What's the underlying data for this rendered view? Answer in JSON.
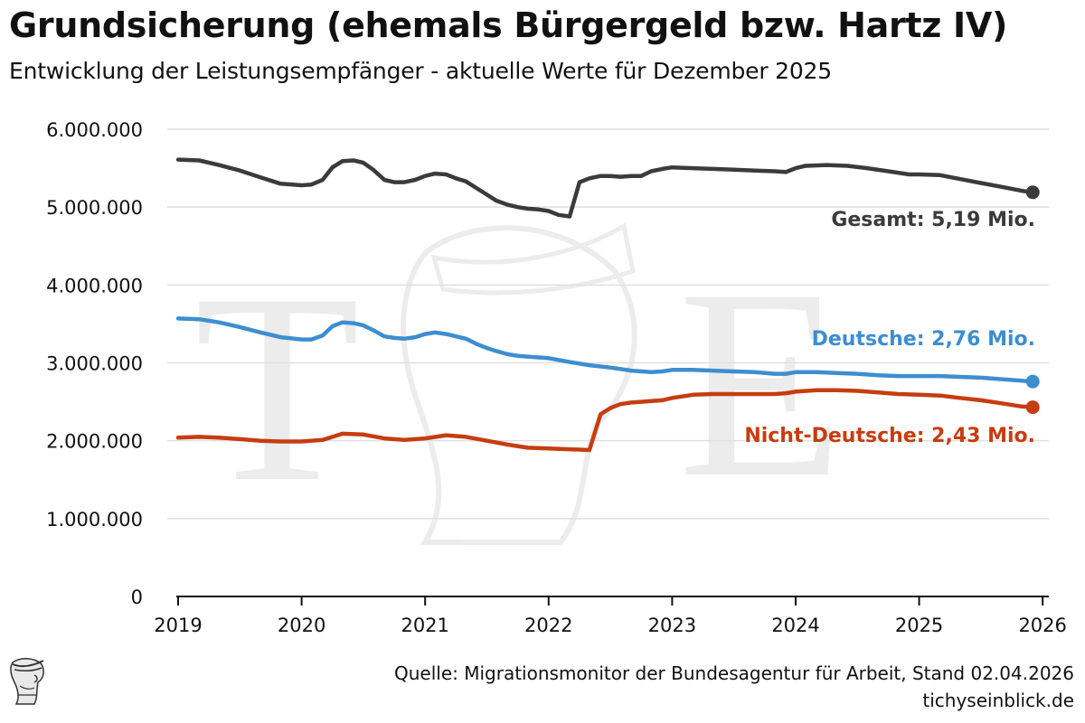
{
  "header": {
    "title": "Grundsicherung (ehemals Bürgergeld bzw. Hartz IV)",
    "subtitle": "Entwicklung der Leistungsempfänger - aktuelle Werte für Dezember 2025"
  },
  "footer": {
    "source": "Quelle: Migrationsmonitor der Bundesagentur für Arbeit, Stand 02.04.2026",
    "site": "tichyseinblick.de"
  },
  "chart_data": {
    "type": "line",
    "title": "Grundsicherung (ehemals Bürgergeld bzw. Hartz IV)",
    "subtitle": "Entwicklung der Leistungsempfänger - aktuelle Werte für Dezember 2025",
    "xlabel": "",
    "ylabel": "",
    "xlim": [
      2019,
      2026.05
    ],
    "ylim": [
      0,
      6000000
    ],
    "grid": true,
    "legend": "direct labels at line ends",
    "x_ticks": [
      {
        "value": 2019,
        "label": "2019"
      },
      {
        "value": 2020,
        "label": "2020"
      },
      {
        "value": 2021,
        "label": "2021"
      },
      {
        "value": 2022,
        "label": "2022"
      },
      {
        "value": 2023,
        "label": "2023"
      },
      {
        "value": 2024,
        "label": "2024"
      },
      {
        "value": 2025,
        "label": "2025"
      },
      {
        "value": 2026,
        "label": "2026"
      }
    ],
    "y_ticks": [
      {
        "value": 0,
        "label": "0"
      },
      {
        "value": 1000000,
        "label": "1.000.000"
      },
      {
        "value": 2000000,
        "label": "2.000.000"
      },
      {
        "value": 3000000,
        "label": "3.000.000"
      },
      {
        "value": 4000000,
        "label": "4.000.000"
      },
      {
        "value": 5000000,
        "label": "5.000.000"
      },
      {
        "value": 6000000,
        "label": "6.000.000"
      }
    ],
    "series": [
      {
        "name": "Gesamt",
        "label": "Gesamt: 5,19 Mio.",
        "color": "#3b3b3b",
        "x": [
          2019.0,
          2019.17,
          2019.33,
          2019.5,
          2019.67,
          2019.83,
          2020.0,
          2020.08,
          2020.17,
          2020.25,
          2020.33,
          2020.42,
          2020.5,
          2020.58,
          2020.67,
          2020.75,
          2020.83,
          2020.92,
          2021.0,
          2021.08,
          2021.17,
          2021.25,
          2021.33,
          2021.42,
          2021.5,
          2021.58,
          2021.67,
          2021.75,
          2021.83,
          2021.92,
          2022.0,
          2022.08,
          2022.17,
          2022.25,
          2022.33,
          2022.42,
          2022.5,
          2022.58,
          2022.67,
          2022.75,
          2022.83,
          2022.92,
          2023.0,
          2023.17,
          2023.33,
          2023.5,
          2023.67,
          2023.83,
          2023.92,
          2024.0,
          2024.08,
          2024.25,
          2024.42,
          2024.58,
          2024.75,
          2024.92,
          2025.0,
          2025.17,
          2025.33,
          2025.5,
          2025.67,
          2025.83,
          2025.92
        ],
        "y": [
          5610000,
          5600000,
          5540000,
          5470000,
          5380000,
          5300000,
          5280000,
          5290000,
          5350000,
          5510000,
          5590000,
          5600000,
          5570000,
          5480000,
          5350000,
          5320000,
          5320000,
          5350000,
          5400000,
          5430000,
          5420000,
          5370000,
          5330000,
          5240000,
          5160000,
          5080000,
          5030000,
          5000000,
          4980000,
          4970000,
          4950000,
          4900000,
          4880000,
          5320000,
          5370000,
          5400000,
          5400000,
          5390000,
          5400000,
          5400000,
          5460000,
          5490000,
          5510000,
          5500000,
          5490000,
          5480000,
          5470000,
          5460000,
          5450000,
          5500000,
          5530000,
          5540000,
          5530000,
          5500000,
          5460000,
          5420000,
          5420000,
          5410000,
          5360000,
          5310000,
          5260000,
          5210000,
          5190000
        ]
      },
      {
        "name": "Deutsche",
        "label": "Deutsche: 2,76 Mio.",
        "color": "#3d8ecf",
        "x": [
          2019.0,
          2019.17,
          2019.33,
          2019.5,
          2019.67,
          2019.83,
          2020.0,
          2020.08,
          2020.17,
          2020.25,
          2020.33,
          2020.42,
          2020.5,
          2020.58,
          2020.67,
          2020.75,
          2020.83,
          2020.92,
          2021.0,
          2021.08,
          2021.17,
          2021.25,
          2021.33,
          2021.42,
          2021.5,
          2021.58,
          2021.67,
          2021.75,
          2021.83,
          2021.92,
          2022.0,
          2022.17,
          2022.33,
          2022.5,
          2022.67,
          2022.83,
          2022.92,
          2023.0,
          2023.17,
          2023.33,
          2023.5,
          2023.67,
          2023.83,
          2023.92,
          2024.0,
          2024.17,
          2024.33,
          2024.5,
          2024.67,
          2024.83,
          2025.0,
          2025.17,
          2025.33,
          2025.5,
          2025.67,
          2025.83,
          2025.92
        ],
        "y": [
          3570000,
          3560000,
          3520000,
          3460000,
          3390000,
          3330000,
          3300000,
          3300000,
          3350000,
          3470000,
          3520000,
          3510000,
          3480000,
          3420000,
          3340000,
          3320000,
          3310000,
          3330000,
          3370000,
          3390000,
          3370000,
          3340000,
          3310000,
          3240000,
          3190000,
          3150000,
          3110000,
          3090000,
          3080000,
          3070000,
          3060000,
          3010000,
          2970000,
          2940000,
          2900000,
          2880000,
          2890000,
          2910000,
          2910000,
          2900000,
          2890000,
          2880000,
          2860000,
          2860000,
          2880000,
          2880000,
          2870000,
          2860000,
          2840000,
          2830000,
          2830000,
          2830000,
          2820000,
          2810000,
          2790000,
          2770000,
          2760000
        ]
      },
      {
        "name": "Nicht-Deutsche",
        "label": "Nicht-Deutsche: 2,43 Mio.",
        "color": "#c63d10",
        "x": [
          2019.0,
          2019.17,
          2019.33,
          2019.5,
          2019.67,
          2019.83,
          2020.0,
          2020.17,
          2020.25,
          2020.33,
          2020.5,
          2020.67,
          2020.83,
          2021.0,
          2021.17,
          2021.33,
          2021.5,
          2021.67,
          2021.83,
          2022.0,
          2022.17,
          2022.33,
          2022.42,
          2022.5,
          2022.58,
          2022.67,
          2022.75,
          2022.83,
          2022.92,
          2023.0,
          2023.17,
          2023.33,
          2023.5,
          2023.67,
          2023.83,
          2023.92,
          2024.0,
          2024.17,
          2024.33,
          2024.5,
          2024.67,
          2024.83,
          2025.0,
          2025.17,
          2025.33,
          2025.5,
          2025.67,
          2025.83,
          2025.92
        ],
        "y": [
          2040000,
          2050000,
          2040000,
          2020000,
          2000000,
          1990000,
          1990000,
          2010000,
          2050000,
          2090000,
          2080000,
          2030000,
          2010000,
          2030000,
          2070000,
          2050000,
          2000000,
          1950000,
          1910000,
          1900000,
          1890000,
          1880000,
          2340000,
          2420000,
          2470000,
          2490000,
          2500000,
          2510000,
          2520000,
          2550000,
          2590000,
          2600000,
          2600000,
          2600000,
          2600000,
          2610000,
          2630000,
          2650000,
          2650000,
          2640000,
          2620000,
          2600000,
          2590000,
          2580000,
          2550000,
          2520000,
          2480000,
          2440000,
          2430000
        ]
      }
    ]
  }
}
